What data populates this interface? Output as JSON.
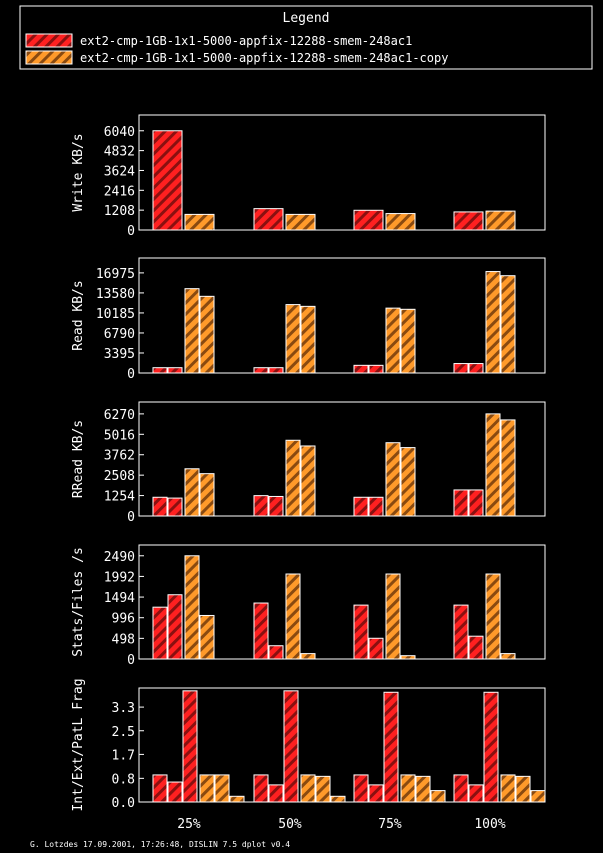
{
  "legend": {
    "title": "Legend",
    "entries": [
      {
        "label": "ext2-cmp-1GB-1x1-5000-appfix-12288-smem-248ac1",
        "color": "#ff2020",
        "hatch": "#8a1010"
      },
      {
        "label": "ext2-cmp-1GB-1x1-5000-appfix-12288-smem-248ac1-copy",
        "color": "#ff9a2a",
        "hatch": "#8a4a10"
      }
    ]
  },
  "footer": "G. Lotzdes 17.09.2001, 17:26:48, DISLIN 7.5 dplot v0.4",
  "chart_data": [
    {
      "type": "bar",
      "ylabel": "Write KB/s",
      "ylim": [
        0,
        7000
      ],
      "yticks": [
        "0",
        "1208",
        "2416",
        "3624",
        "4832",
        "6040"
      ],
      "tick_values": [
        0,
        1208,
        2416,
        3624,
        4832,
        6040
      ],
      "categories": [
        "25%",
        "50%",
        "75%",
        "100%"
      ],
      "series": [
        {
          "values": [
            [
              6040
            ],
            [
              1300
            ],
            [
              1200
            ],
            [
              1100
            ]
          ]
        },
        {
          "values": [
            [
              950
            ],
            [
              950
            ],
            [
              1000
            ],
            [
              1150
            ]
          ]
        }
      ]
    },
    {
      "type": "bar",
      "ylabel": "Read KB/s",
      "ylim": [
        0,
        19500
      ],
      "yticks": [
        "0",
        "3395",
        "6790",
        "10185",
        "13580",
        "16975"
      ],
      "tick_values": [
        0,
        3395,
        6790,
        10185,
        13580,
        16975
      ],
      "categories": [
        "25%",
        "50%",
        "75%",
        "100%"
      ],
      "series": [
        {
          "values": [
            [
              900,
              900
            ],
            [
              900,
              900
            ],
            [
              1300,
              1300
            ],
            [
              1600,
              1600
            ]
          ]
        },
        {
          "values": [
            [
              14300,
              13000
            ],
            [
              11600,
              11300
            ],
            [
              11000,
              10800
            ],
            [
              17200,
              16500
            ]
          ]
        }
      ]
    },
    {
      "type": "bar",
      "ylabel": "RRead KB/s",
      "ylim": [
        0,
        7000
      ],
      "yticks": [
        "0",
        "1254",
        "2508",
        "3762",
        "5016",
        "6270"
      ],
      "tick_values": [
        0,
        1254,
        2508,
        3762,
        5016,
        6270
      ],
      "categories": [
        "25%",
        "50%",
        "75%",
        "100%"
      ],
      "series": [
        {
          "values": [
            [
              1150,
              1100
            ],
            [
              1250,
              1200
            ],
            [
              1150,
              1150
            ],
            [
              1600,
              1600
            ]
          ]
        },
        {
          "values": [
            [
              2900,
              2600
            ],
            [
              4650,
              4300
            ],
            [
              4500,
              4200
            ],
            [
              6270,
              5900
            ]
          ]
        }
      ]
    },
    {
      "type": "bar",
      "ylabel": "Stats/Files /s",
      "ylim": [
        0,
        2750
      ],
      "yticks": [
        "0",
        "498",
        "996",
        "1494",
        "1992",
        "2490"
      ],
      "tick_values": [
        0,
        498,
        996,
        1494,
        1992,
        2490
      ],
      "categories": [
        "25%",
        "50%",
        "75%",
        "100%"
      ],
      "series": [
        {
          "values": [
            [
              1250,
              1550
            ],
            [
              1350,
              320
            ],
            [
              1300,
              500
            ],
            [
              1300,
              550
            ]
          ]
        },
        {
          "values": [
            [
              2490,
              1050
            ],
            [
              2050,
              130
            ],
            [
              2050,
              80
            ],
            [
              2050,
              130
            ]
          ]
        }
      ]
    },
    {
      "type": "bar",
      "ylabel": "Int/Ext/PatL Frag",
      "ylim": [
        0,
        4.0
      ],
      "yticks": [
        "0.0",
        "0.8",
        "1.7",
        "2.5",
        "3.3"
      ],
      "tick_values": [
        0,
        0.83,
        1.67,
        2.5,
        3.33
      ],
      "categories": [
        "25%",
        "50%",
        "75%",
        "100%"
      ],
      "series": [
        {
          "values": [
            [
              0.95,
              0.7,
              3.9
            ],
            [
              0.95,
              0.6,
              3.9
            ],
            [
              0.95,
              0.6,
              3.85
            ],
            [
              0.95,
              0.6,
              3.85
            ]
          ]
        },
        {
          "values": [
            [
              0.95,
              0.95,
              0.2
            ],
            [
              0.95,
              0.9,
              0.2
            ],
            [
              0.95,
              0.9,
              0.4
            ],
            [
              0.95,
              0.9,
              0.4
            ]
          ]
        }
      ]
    }
  ]
}
